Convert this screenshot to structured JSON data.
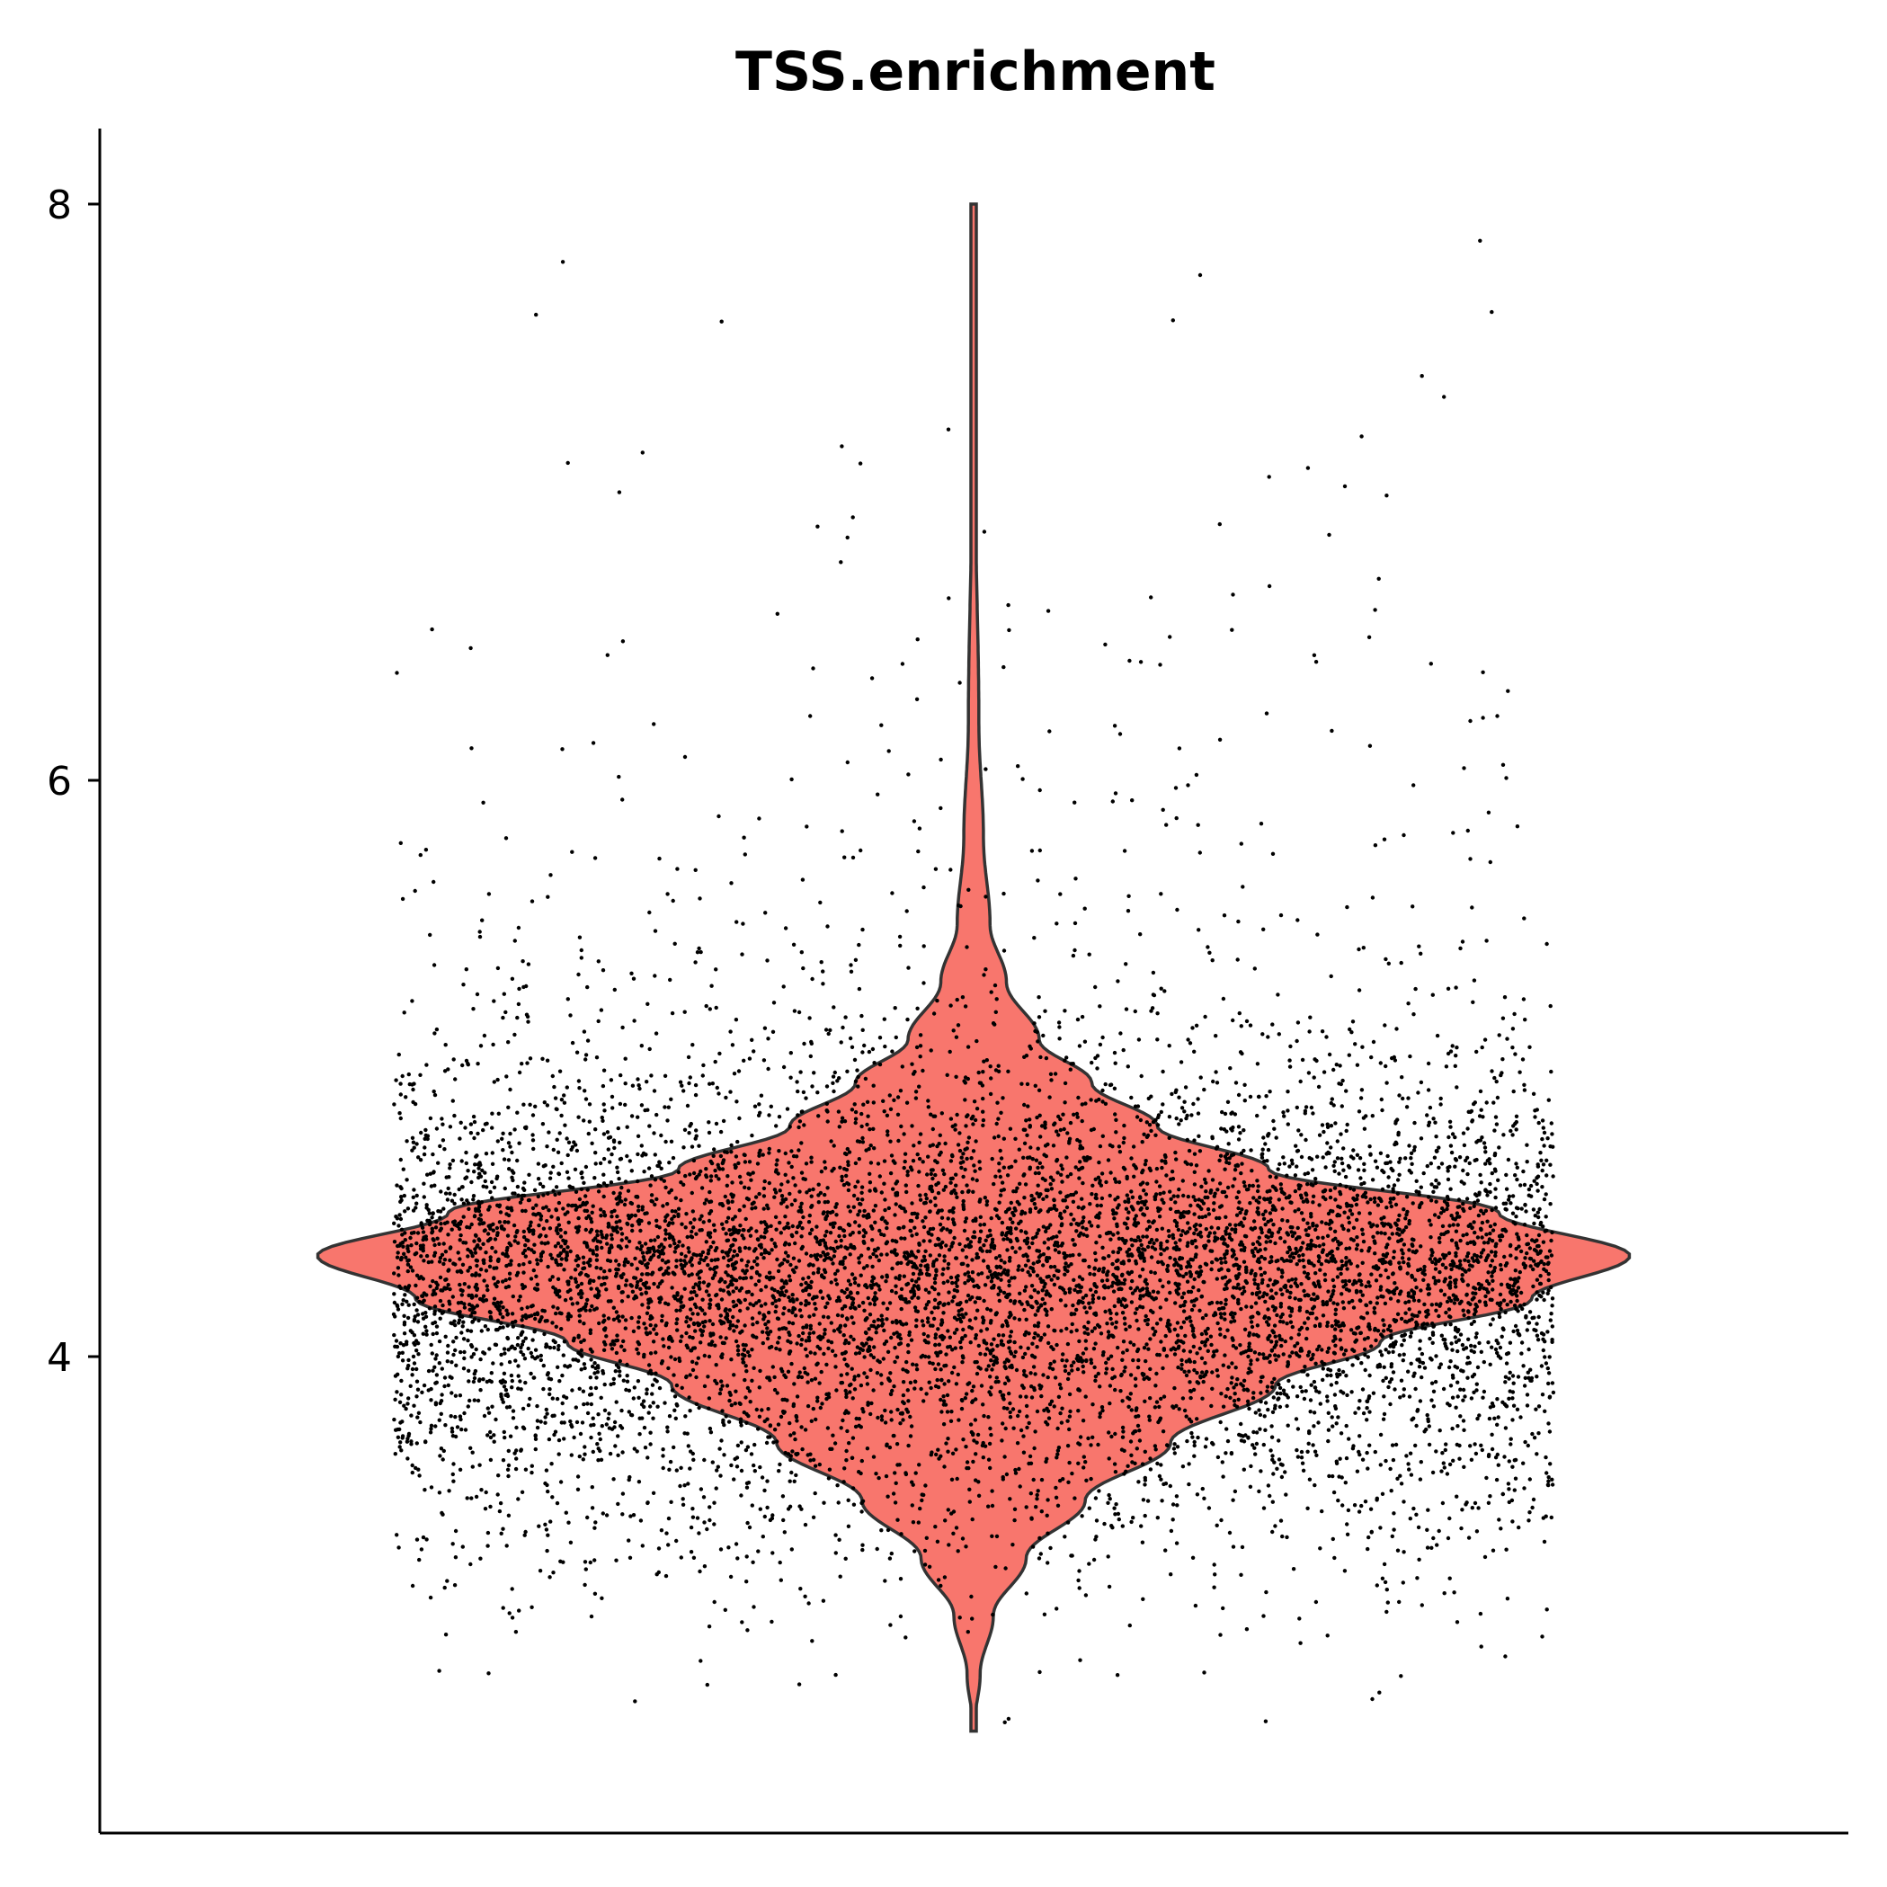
{
  "chart_data": {
    "type": "violin",
    "title": "TSS.enrichment",
    "xlabel": "",
    "ylabel": "",
    "ylim": [
      2.4,
      8.3
    ],
    "yticks": [
      4,
      6,
      8
    ],
    "grid": false,
    "legend": "none",
    "fill_color": "#F8766D",
    "outline_color": "#333333",
    "point_color": "#000000",
    "series": [
      {
        "min": 2.7,
        "max": 8.0,
        "mode": 4.35,
        "density_profile": [
          [
            2.7,
            0.0
          ],
          [
            2.9,
            0.01
          ],
          [
            3.1,
            0.03
          ],
          [
            3.3,
            0.08
          ],
          [
            3.5,
            0.17
          ],
          [
            3.7,
            0.3
          ],
          [
            3.9,
            0.46
          ],
          [
            4.05,
            0.62
          ],
          [
            4.2,
            0.85
          ],
          [
            4.35,
            1.0
          ],
          [
            4.5,
            0.8
          ],
          [
            4.65,
            0.45
          ],
          [
            4.8,
            0.28
          ],
          [
            4.95,
            0.18
          ],
          [
            5.1,
            0.1
          ],
          [
            5.3,
            0.05
          ],
          [
            5.5,
            0.025
          ],
          [
            5.8,
            0.015
          ],
          [
            6.2,
            0.008
          ],
          [
            7.0,
            0.003
          ],
          [
            8.0,
            0.0
          ]
        ]
      }
    ]
  }
}
